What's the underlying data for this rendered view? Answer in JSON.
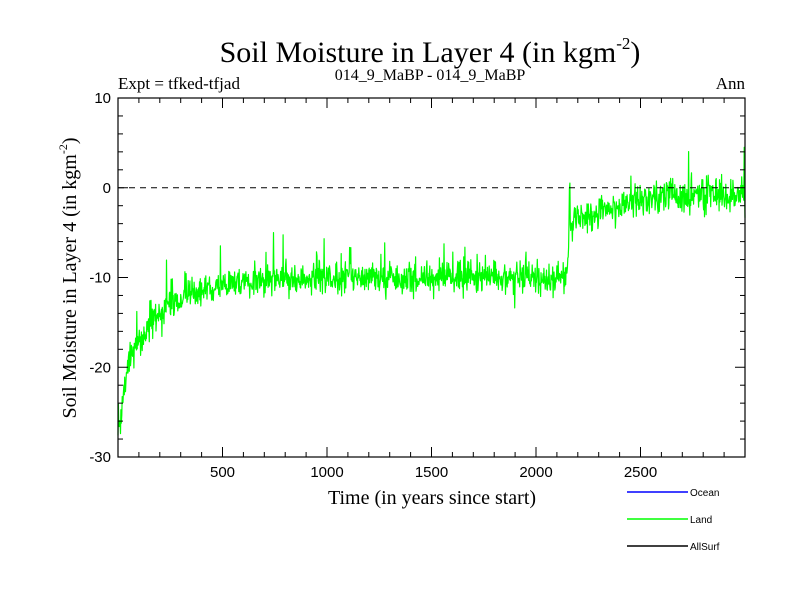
{
  "chart_data": {
    "type": "line",
    "title": "Soil Moisture in Layer 4 (in kgm",
    "title_sup": "-2",
    "title_tail": ")",
    "subtitle_left": "Expt = tfked-tfjad",
    "subtitle_center": "014_9_MaBP - 014_9_MaBP",
    "subtitle_right": "Ann",
    "xlabel": "Time (in years since start)",
    "ylabel": "Soil Moisture in Layer 4 (in kgm",
    "ylabel_sup": "-2",
    "ylabel_tail": ")",
    "xlim": [
      0,
      3000
    ],
    "ylim": [
      -30,
      10
    ],
    "xticks": [
      500,
      1000,
      1500,
      2000,
      2500
    ],
    "yticks": [
      -30,
      -20,
      -10,
      0,
      10
    ],
    "zero_line": 0,
    "grid": false,
    "legend_placement": "bottom-right",
    "series": [
      {
        "name": "Ocean",
        "color": "#0000ff",
        "values": []
      },
      {
        "name": "Land",
        "color": "#00ff00",
        "x": [
          0,
          25,
          50,
          75,
          100,
          125,
          150,
          200,
          250,
          300,
          350,
          400,
          450,
          500,
          550,
          600,
          650,
          700,
          800,
          900,
          1000,
          1100,
          1200,
          1300,
          1400,
          1500,
          1600,
          1700,
          1800,
          1900,
          2000,
          2100,
          2150,
          2160,
          2200,
          2300,
          2400,
          2500,
          2600,
          2700,
          2800,
          2900,
          3000
        ],
        "values": [
          -29,
          -23,
          -20,
          -18.5,
          -17,
          -16,
          -15,
          -14,
          -13,
          -12.5,
          -12,
          -11.5,
          -11.2,
          -11,
          -10.8,
          -10.6,
          -10.5,
          -10.4,
          -10.2,
          -10.1,
          -10,
          -10,
          -10,
          -10.1,
          -10,
          -10,
          -10,
          -10,
          -10,
          -10,
          -10,
          -10,
          -10,
          -4,
          -3.5,
          -2.5,
          -2,
          -1.5,
          -1,
          -0.8,
          -0.6,
          -0.5,
          -0.5
        ],
        "noise_amplitude": 2.3
      },
      {
        "name": "AllSurf",
        "color": "#000000",
        "values": []
      }
    ]
  }
}
